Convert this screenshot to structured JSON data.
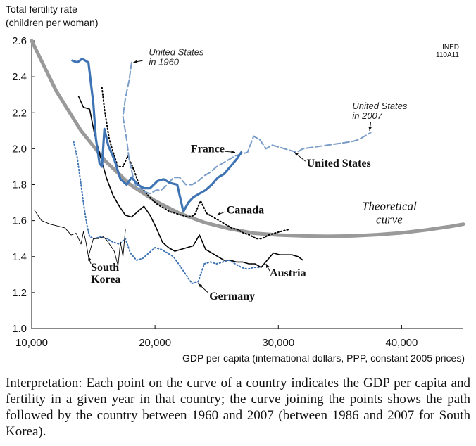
{
  "chart_data": {
    "type": "line",
    "ylabel": "Total fertility rate\n(children per woman)",
    "xlabel": "GDP per capita (international dollars, PPP, constant 2005 prices)",
    "xlim": [
      10000,
      45000
    ],
    "ylim": [
      1.0,
      2.6
    ],
    "x_ticks": [
      10000,
      20000,
      30000,
      40000
    ],
    "x_tick_labels": [
      "10,000",
      "20,000",
      "30,000",
      "40,000"
    ],
    "y_ticks": [
      1.0,
      1.2,
      1.4,
      1.6,
      1.8,
      2.0,
      2.2,
      2.4,
      2.6
    ],
    "y_tick_labels": [
      "1.0",
      "1.2",
      "1.4",
      "1.6",
      "1.8",
      "2.0",
      "2.2",
      "2.4",
      "2.6"
    ],
    "source_code": "INED\n110A11",
    "theoretical_label": "Theoretical\ncurve",
    "series": [
      {
        "name": "Theoretical curve",
        "color": "#9a9a9a",
        "style": "thick",
        "points": [
          [
            10000,
            2.6
          ],
          [
            12000,
            2.32
          ],
          [
            14000,
            2.1
          ],
          [
            16000,
            1.93
          ],
          [
            18000,
            1.8
          ],
          [
            20000,
            1.71
          ],
          [
            22000,
            1.64
          ],
          [
            24000,
            1.59
          ],
          [
            26000,
            1.555
          ],
          [
            28000,
            1.53
          ],
          [
            30000,
            1.52
          ],
          [
            32000,
            1.515
          ],
          [
            34000,
            1.513
          ],
          [
            36000,
            1.515
          ],
          [
            38000,
            1.522
          ],
          [
            40000,
            1.532
          ],
          [
            42000,
            1.548
          ],
          [
            44000,
            1.568
          ],
          [
            45000,
            1.58
          ]
        ]
      },
      {
        "name": "United States",
        "color": "#7a9cc8",
        "style": "dashed",
        "points": [
          [
            18100,
            2.48
          ],
          [
            17900,
            2.38
          ],
          [
            17600,
            2.28
          ],
          [
            17400,
            2.18
          ],
          [
            17700,
            2.05
          ],
          [
            17900,
            1.94
          ],
          [
            18200,
            1.85
          ],
          [
            18500,
            1.78
          ],
          [
            18800,
            1.78
          ],
          [
            19200,
            1.76
          ],
          [
            19600,
            1.75
          ],
          [
            20100,
            1.77
          ],
          [
            20500,
            1.77
          ],
          [
            21000,
            1.8
          ],
          [
            21500,
            1.84
          ],
          [
            22000,
            1.84
          ],
          [
            22500,
            1.8
          ],
          [
            23000,
            1.8
          ],
          [
            23500,
            1.82
          ],
          [
            24000,
            1.85
          ],
          [
            24500,
            1.87
          ],
          [
            25000,
            1.9
          ],
          [
            25500,
            1.92
          ],
          [
            26000,
            1.94
          ],
          [
            26500,
            1.96
          ],
          [
            27000,
            1.97
          ],
          [
            27500,
            1.98
          ],
          [
            28000,
            2.07
          ],
          [
            28500,
            2.05
          ],
          [
            29000,
            2.0
          ],
          [
            29500,
            2.02
          ],
          [
            30000,
            2.01
          ],
          [
            30500,
            2.0
          ],
          [
            31000,
            1.99
          ],
          [
            31500,
            1.98
          ],
          [
            32000,
            2.0
          ],
          [
            33000,
            2.01
          ],
          [
            34000,
            2.02
          ],
          [
            35000,
            2.03
          ],
          [
            36000,
            2.04
          ],
          [
            36500,
            2.05
          ],
          [
            37000,
            2.07
          ],
          [
            37500,
            2.09
          ]
        ]
      },
      {
        "name": "France",
        "color": "#3f74b4",
        "style": "solid-thick",
        "points": [
          [
            13300,
            2.49
          ],
          [
            13700,
            2.48
          ],
          [
            14100,
            2.5
          ],
          [
            14600,
            2.48
          ],
          [
            15000,
            2.25
          ],
          [
            15200,
            2.06
          ],
          [
            15500,
            1.92
          ],
          [
            15700,
            1.9
          ],
          [
            15900,
            2.11
          ],
          [
            16200,
            2.02
          ],
          [
            16700,
            1.94
          ],
          [
            17200,
            1.83
          ],
          [
            17700,
            1.8
          ],
          [
            18100,
            1.84
          ],
          [
            18600,
            1.8
          ],
          [
            19100,
            1.78
          ],
          [
            19600,
            1.78
          ],
          [
            20200,
            1.82
          ],
          [
            20700,
            1.83
          ],
          [
            21200,
            1.81
          ],
          [
            21800,
            1.8
          ],
          [
            22300,
            1.65
          ],
          [
            22700,
            1.7
          ],
          [
            23100,
            1.73
          ],
          [
            23600,
            1.75
          ],
          [
            24100,
            1.77
          ],
          [
            24600,
            1.8
          ],
          [
            25100,
            1.84
          ],
          [
            25600,
            1.86
          ],
          [
            26100,
            1.9
          ],
          [
            26600,
            1.94
          ],
          [
            27000,
            1.98
          ]
        ]
      },
      {
        "name": "Canada",
        "color": "#000000",
        "style": "dotted",
        "points": [
          [
            15700,
            2.34
          ],
          [
            15900,
            2.22
          ],
          [
            16300,
            2.05
          ],
          [
            16700,
            1.96
          ],
          [
            17000,
            1.9
          ],
          [
            17400,
            1.9
          ],
          [
            17800,
            1.96
          ],
          [
            18300,
            1.88
          ],
          [
            18700,
            1.8
          ],
          [
            19200,
            1.76
          ],
          [
            19700,
            1.72
          ],
          [
            20200,
            1.69
          ],
          [
            20700,
            1.67
          ],
          [
            21200,
            1.65
          ],
          [
            21700,
            1.64
          ],
          [
            22200,
            1.63
          ],
          [
            22700,
            1.62
          ],
          [
            23200,
            1.63
          ],
          [
            23700,
            1.71
          ],
          [
            24200,
            1.64
          ],
          [
            24700,
            1.62
          ],
          [
            25200,
            1.6
          ],
          [
            25700,
            1.58
          ],
          [
            26200,
            1.56
          ],
          [
            26700,
            1.55
          ],
          [
            27200,
            1.53
          ],
          [
            27700,
            1.52
          ],
          [
            28200,
            1.5
          ],
          [
            28700,
            1.5
          ],
          [
            29200,
            1.52
          ],
          [
            29700,
            1.53
          ],
          [
            30200,
            1.54
          ],
          [
            30800,
            1.55
          ]
        ]
      },
      {
        "name": "Austria",
        "color": "#000000",
        "style": "solid",
        "points": [
          [
            13800,
            2.29
          ],
          [
            14200,
            2.23
          ],
          [
            14700,
            2.22
          ],
          [
            15100,
            2.08
          ],
          [
            15600,
            1.95
          ],
          [
            16100,
            1.83
          ],
          [
            16600,
            1.74
          ],
          [
            17100,
            1.68
          ],
          [
            17600,
            1.63
          ],
          [
            18100,
            1.62
          ],
          [
            18600,
            1.65
          ],
          [
            19100,
            1.68
          ],
          [
            19600,
            1.63
          ],
          [
            20100,
            1.56
          ],
          [
            20600,
            1.48
          ],
          [
            21100,
            1.45
          ],
          [
            21600,
            1.43
          ],
          [
            22100,
            1.44
          ],
          [
            22600,
            1.45
          ],
          [
            23100,
            1.46
          ],
          [
            23600,
            1.52
          ],
          [
            24100,
            1.44
          ],
          [
            24600,
            1.42
          ],
          [
            25100,
            1.4
          ],
          [
            25600,
            1.38
          ],
          [
            26100,
            1.38
          ],
          [
            26600,
            1.37
          ],
          [
            27100,
            1.37
          ],
          [
            27600,
            1.36
          ],
          [
            28100,
            1.36
          ],
          [
            28600,
            1.34
          ],
          [
            29100,
            1.38
          ],
          [
            29600,
            1.42
          ],
          [
            30100,
            1.41
          ],
          [
            30600,
            1.41
          ],
          [
            31100,
            1.41
          ],
          [
            31600,
            1.4
          ],
          [
            32000,
            1.38
          ]
        ]
      },
      {
        "name": "Germany",
        "color": "#3f74b4",
        "style": "dotted",
        "points": [
          [
            13400,
            2.04
          ],
          [
            13700,
            1.95
          ],
          [
            13900,
            1.85
          ],
          [
            14100,
            1.75
          ],
          [
            14300,
            1.65
          ],
          [
            14500,
            1.57
          ],
          [
            14700,
            1.51
          ],
          [
            15100,
            1.5
          ],
          [
            15600,
            1.51
          ],
          [
            16100,
            1.5
          ],
          [
            16600,
            1.48
          ],
          [
            17100,
            1.47
          ],
          [
            17600,
            1.5
          ],
          [
            18000,
            1.42
          ],
          [
            18500,
            1.38
          ],
          [
            19000,
            1.39
          ],
          [
            19500,
            1.42
          ],
          [
            20000,
            1.45
          ],
          [
            20500,
            1.44
          ],
          [
            21000,
            1.42
          ],
          [
            21500,
            1.4
          ],
          [
            22000,
            1.35
          ],
          [
            22500,
            1.3
          ],
          [
            23000,
            1.25
          ],
          [
            23500,
            1.26
          ],
          [
            24000,
            1.36
          ],
          [
            24500,
            1.37
          ],
          [
            25000,
            1.36
          ],
          [
            25500,
            1.37
          ],
          [
            26000,
            1.38
          ],
          [
            26500,
            1.36
          ],
          [
            27000,
            1.34
          ],
          [
            27500,
            1.33
          ],
          [
            28000,
            1.34
          ],
          [
            28500,
            1.34
          ]
        ]
      },
      {
        "name": "South Korea",
        "color": "#000000",
        "style": "thin",
        "points": [
          [
            10200,
            1.66
          ],
          [
            10800,
            1.6
          ],
          [
            11500,
            1.58
          ],
          [
            12100,
            1.57
          ],
          [
            12700,
            1.56
          ],
          [
            13200,
            1.52
          ],
          [
            13600,
            1.53
          ],
          [
            14000,
            1.47
          ],
          [
            14200,
            1.54
          ],
          [
            14400,
            1.48
          ],
          [
            14600,
            1.4
          ],
          [
            14800,
            1.45
          ],
          [
            15000,
            1.5
          ],
          [
            15400,
            1.5
          ],
          [
            15800,
            1.51
          ],
          [
            16100,
            1.49
          ],
          [
            16400,
            1.46
          ],
          [
            16700,
            1.43
          ],
          [
            17000,
            1.35
          ],
          [
            17200,
            1.48
          ],
          [
            17400,
            1.4
          ],
          [
            17600,
            1.55
          ]
        ]
      }
    ],
    "annotations": [
      {
        "text": "United States\nin 1960",
        "style": "italic"
      },
      {
        "text": "United States\nin 2007",
        "style": "italic"
      },
      {
        "text": "France",
        "style": "bold"
      },
      {
        "text": "United States",
        "style": "bold"
      },
      {
        "text": "Canada",
        "style": "bold"
      },
      {
        "text": "South\nKorea",
        "style": "bold"
      },
      {
        "text": "Austria",
        "style": "bold"
      },
      {
        "text": "Germany",
        "style": "bold"
      }
    ]
  },
  "interpretation": "Interpretation: Each point on the curve of a country indicates the GDP per capita and fertility in a given year in that country; the curve joining the points shows the path followed by the country between 1960 and 2007 (between 1986 and 2007 for South Korea)."
}
